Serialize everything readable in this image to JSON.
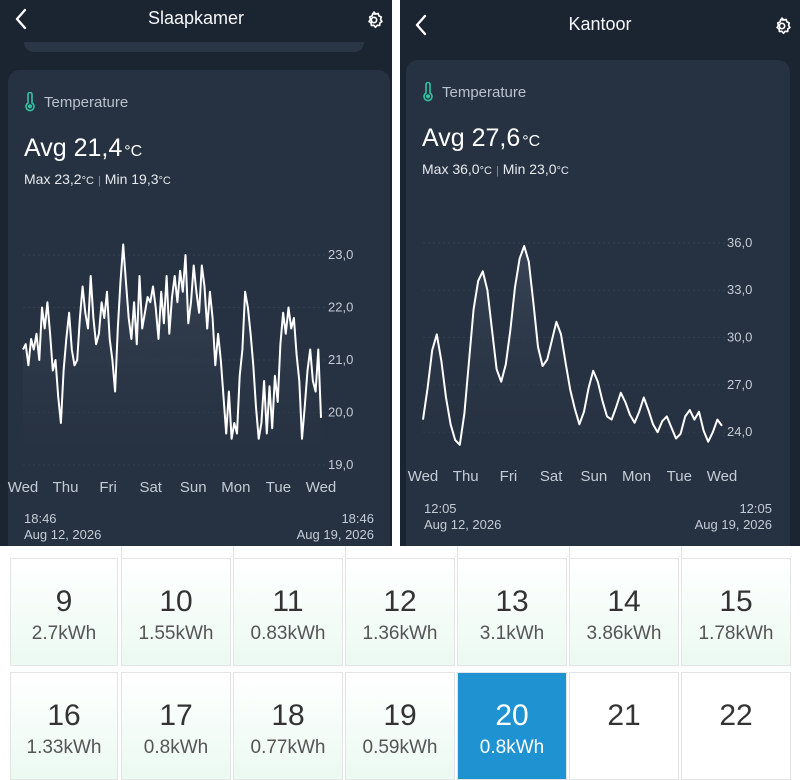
{
  "left": {
    "title": "Slaapkamer",
    "card_label": "Temperature",
    "avg_label": "Avg",
    "avg_value": "21,4",
    "unit": "°C",
    "max_label": "Max",
    "max_value": "23,2",
    "min_label": "Min",
    "min_value": "19,3",
    "start_time": "18:46",
    "start_date": "Aug 12, 2026",
    "end_time": "18:46",
    "end_date": "Aug 19, 2026"
  },
  "right": {
    "title": "Kantoor",
    "card_label": "Temperature",
    "avg_label": "Avg",
    "avg_value": "27,6",
    "unit": "°C",
    "max_label": "Max",
    "max_value": "36,0",
    "min_label": "Min",
    "min_value": "23,0",
    "start_time": "12:05",
    "start_date": "Aug 12, 2026",
    "end_time": "12:05",
    "end_date": "Aug 19, 2026"
  },
  "chart_data": [
    {
      "type": "line",
      "x_labels": [
        "Wed",
        "Thu",
        "Fri",
        "Sat",
        "Sun",
        "Mon",
        "Tue",
        "Wed"
      ],
      "y_ticks": [
        "19,0",
        "20,0",
        "21,0",
        "22,0",
        "23,0"
      ],
      "ylim": [
        19.0,
        23.0
      ],
      "y": [
        21.2,
        21.3,
        20.9,
        21.4,
        21.2,
        21.5,
        21.0,
        22.0,
        21.6,
        22.1,
        21.5,
        20.8,
        21.0,
        20.3,
        19.8,
        20.8,
        21.4,
        21.9,
        21.2,
        20.9,
        21.0,
        21.8,
        22.4,
        21.9,
        21.6,
        22.6,
        21.8,
        21.3,
        21.5,
        22.1,
        21.8,
        22.3,
        21.4,
        21.0,
        20.4,
        21.6,
        22.5,
        23.2,
        22.5,
        21.8,
        21.4,
        22.1,
        21.3,
        22.6,
        21.6,
        21.9,
        22.2,
        22.1,
        22.4,
        22.0,
        21.4,
        22.3,
        21.7,
        22.6,
        21.5,
        22.2,
        22.6,
        22.1,
        22.7,
        22.3,
        23.0,
        21.7,
        22.1,
        22.8,
        22.3,
        21.9,
        22.8,
        22.4,
        21.6,
        22.3,
        21.8,
        20.9,
        21.5,
        21.0,
        20.3,
        19.6,
        20.4,
        19.5,
        19.8,
        19.6,
        20.7,
        21.2,
        22.3,
        22.0,
        21.5,
        20.9,
        20.1,
        19.5,
        19.8,
        20.6,
        19.6,
        20.5,
        19.7,
        20.7,
        20.2,
        21.3,
        21.9,
        21.5,
        22.0,
        21.6,
        21.8,
        21.1,
        20.6,
        19.5,
        20.1,
        20.8,
        21.2,
        20.6,
        20.4,
        21.2,
        19.9
      ]
    },
    {
      "type": "line",
      "x_labels": [
        "Wed",
        "Thu",
        "Fri",
        "Sat",
        "Sun",
        "Mon",
        "Tue",
        "Wed"
      ],
      "y_ticks": [
        "24,0",
        "27,0",
        "30,0",
        "33,0",
        "36,0"
      ],
      "ylim": [
        23.0,
        36.5
      ],
      "y": [
        24.8,
        26.8,
        29.2,
        30.2,
        28.5,
        26.2,
        24.5,
        23.5,
        23.2,
        25.2,
        28.5,
        31.8,
        33.6,
        34.2,
        33.0,
        30.5,
        28.0,
        27.2,
        28.3,
        30.5,
        33.2,
        35.0,
        35.8,
        34.8,
        32.2,
        29.4,
        28.2,
        28.6,
        29.8,
        31.0,
        30.2,
        28.4,
        26.7,
        25.5,
        24.5,
        25.3,
        26.8,
        27.9,
        27.2,
        26.0,
        25.0,
        24.8,
        25.6,
        26.5,
        25.9,
        25.1,
        24.6,
        25.3,
        26.2,
        25.4,
        24.5,
        24.0,
        24.7,
        25.0,
        24.3,
        23.6,
        23.9,
        25.0,
        25.4,
        24.8,
        25.3,
        24.1,
        23.4,
        24.0,
        24.8,
        24.4
      ]
    }
  ],
  "calendar": {
    "rows": [
      [
        {
          "day": "9",
          "kwh": "2.7kWh"
        },
        {
          "day": "10",
          "kwh": "1.55kWh"
        },
        {
          "day": "11",
          "kwh": "0.83kWh"
        },
        {
          "day": "12",
          "kwh": "1.36kWh"
        },
        {
          "day": "13",
          "kwh": "3.1kWh"
        },
        {
          "day": "14",
          "kwh": "3.86kWh"
        },
        {
          "day": "15",
          "kwh": "1.78kWh"
        }
      ],
      [
        {
          "day": "16",
          "kwh": "1.33kWh"
        },
        {
          "day": "17",
          "kwh": "0.8kWh"
        },
        {
          "day": "18",
          "kwh": "0.77kWh"
        },
        {
          "day": "19",
          "kwh": "0.59kWh"
        },
        {
          "day": "20",
          "kwh": "0.8kWh",
          "selected": true
        },
        {
          "day": "21",
          "kwh": ""
        },
        {
          "day": "22",
          "kwh": ""
        }
      ]
    ],
    "colors": {
      "accent": "#1f92d1",
      "tint": "#ebfaf2",
      "border": "#e4e4e4"
    }
  },
  "colors": {
    "panel_bg": "#1b2431",
    "card_bg": "#263141",
    "line": "#ffffff",
    "thermo": "#2dc5a2"
  },
  "icons": {
    "back": "chevron-left-icon",
    "settings": "gear-icon",
    "sensor": "thermometer-icon"
  }
}
